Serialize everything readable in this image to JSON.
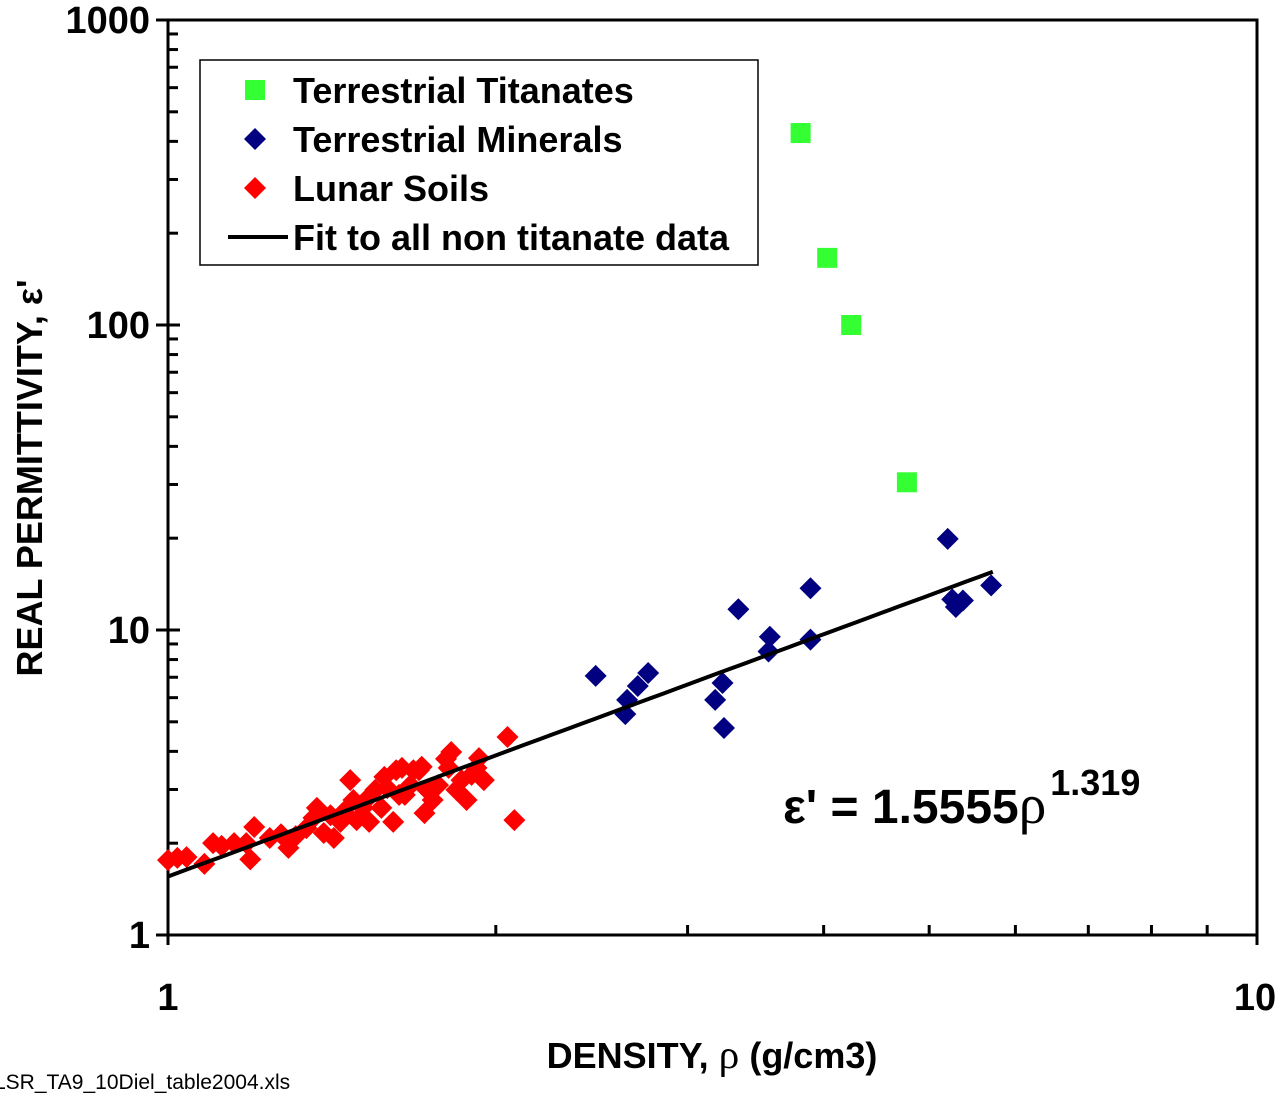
{
  "chart_data": {
    "type": "scatter",
    "xlabel": "DENSITY, ρ (g/cm3)",
    "ylabel": "REAL PERMITTIVITY, ε'",
    "xscale": "log",
    "yscale": "log",
    "xlim": [
      1,
      10
    ],
    "ylim": [
      1,
      1000
    ],
    "x_tick_labels": [
      "1",
      "10"
    ],
    "y_tick_labels": [
      "1",
      "10",
      "100",
      "1000"
    ],
    "grid": false,
    "legend_position": "top-left",
    "series": [
      {
        "name": "Terrestrial Titanates",
        "marker": "square",
        "color": "#33ff33",
        "points": [
          [
            3.81,
            426
          ],
          [
            4.03,
            166
          ],
          [
            4.24,
            100
          ],
          [
            4.77,
            30.5
          ]
        ]
      },
      {
        "name": "Terrestrial Minerals",
        "marker": "diamond",
        "color": "#000080",
        "points": [
          [
            2.47,
            7.07
          ],
          [
            2.63,
            5.3
          ],
          [
            2.64,
            5.9
          ],
          [
            2.7,
            6.55
          ],
          [
            2.76,
            7.23
          ],
          [
            3.18,
            5.9
          ],
          [
            3.23,
            6.7
          ],
          [
            3.24,
            4.77
          ],
          [
            3.34,
            11.7
          ],
          [
            3.56,
            8.5
          ],
          [
            3.57,
            9.5
          ],
          [
            3.89,
            13.7
          ],
          [
            3.89,
            9.3
          ],
          [
            5.2,
            19.9
          ],
          [
            5.25,
            12.6
          ],
          [
            5.29,
            11.9
          ],
          [
            5.37,
            12.5
          ],
          [
            5.7,
            14.0
          ]
        ]
      },
      {
        "name": "Lunar Soils",
        "marker": "diamond",
        "color": "#ff0000",
        "points": [
          [
            1.0,
            1.76
          ],
          [
            1.02,
            1.79
          ],
          [
            1.04,
            1.8
          ],
          [
            1.08,
            1.71
          ],
          [
            1.1,
            2.0
          ],
          [
            1.12,
            1.96
          ],
          [
            1.15,
            2.0
          ],
          [
            1.18,
            2.0
          ],
          [
            1.19,
            1.77
          ],
          [
            1.2,
            2.26
          ],
          [
            1.24,
            2.08
          ],
          [
            1.27,
            2.14
          ],
          [
            1.29,
            1.93
          ],
          [
            1.31,
            2.11
          ],
          [
            1.34,
            2.24
          ],
          [
            1.36,
            2.42
          ],
          [
            1.37,
            2.61
          ],
          [
            1.39,
            2.16
          ],
          [
            1.41,
            2.47
          ],
          [
            1.42,
            2.08
          ],
          [
            1.44,
            2.35
          ],
          [
            1.45,
            2.53
          ],
          [
            1.47,
            3.22
          ],
          [
            1.48,
            2.77
          ],
          [
            1.49,
            2.38
          ],
          [
            1.51,
            2.61
          ],
          [
            1.52,
            2.77
          ],
          [
            1.53,
            2.35
          ],
          [
            1.55,
            2.99
          ],
          [
            1.57,
            2.61
          ],
          [
            1.58,
            3.3
          ],
          [
            1.59,
            3.03
          ],
          [
            1.61,
            2.35
          ],
          [
            1.62,
            3.47
          ],
          [
            1.63,
            2.88
          ],
          [
            1.64,
            3.53
          ],
          [
            1.65,
            2.88
          ],
          [
            1.67,
            3.1
          ],
          [
            1.68,
            3.47
          ],
          [
            1.7,
            3.47
          ],
          [
            1.71,
            3.56
          ],
          [
            1.72,
            2.51
          ],
          [
            1.73,
            2.99
          ],
          [
            1.75,
            2.77
          ],
          [
            1.77,
            3.1
          ],
          [
            1.8,
            3.78
          ],
          [
            1.81,
            3.53
          ],
          [
            1.82,
            3.98
          ],
          [
            1.84,
            2.99
          ],
          [
            1.86,
            3.22
          ],
          [
            1.88,
            2.77
          ],
          [
            1.9,
            3.35
          ],
          [
            1.92,
            3.53
          ],
          [
            1.93,
            3.8
          ],
          [
            1.95,
            3.22
          ],
          [
            2.05,
            4.46
          ],
          [
            2.08,
            2.38
          ]
        ]
      }
    ],
    "fit": {
      "name": "Fit to all non titanate data",
      "color": "#000000",
      "coefficient": 1.5555,
      "exponent": 1.319,
      "x_range": [
        1,
        5.72
      ]
    },
    "annotation": {
      "text": "ε' = 1.5555ρ",
      "superscript": "1.319"
    }
  },
  "footer": {
    "filename": "LSR_TA9_10Diel_table2004.xls"
  }
}
